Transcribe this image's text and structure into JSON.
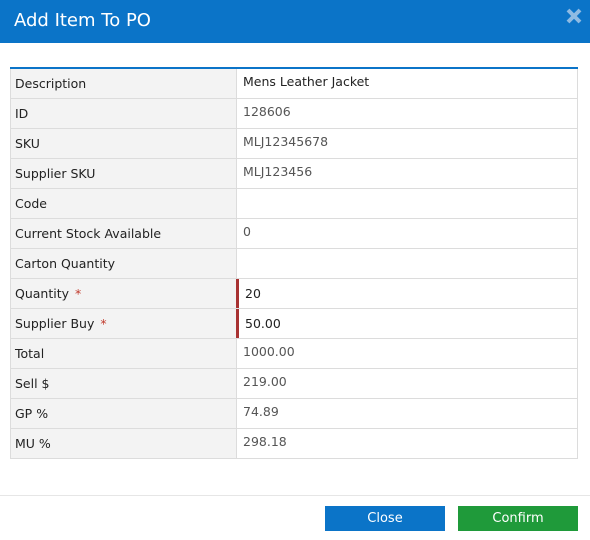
{
  "dialog": {
    "title": "Add Item To PO",
    "close_icon": "close-x-icon",
    "accent_color": "#0b74c8",
    "required_color": "#c0392b"
  },
  "fields": [
    {
      "label": "Description",
      "value": "Mens Leather Jacket",
      "required": false,
      "editable": false
    },
    {
      "label": "ID",
      "value": "128606",
      "required": false,
      "editable": false
    },
    {
      "label": "SKU",
      "value": "MLJ12345678",
      "required": false,
      "editable": false
    },
    {
      "label": "Supplier SKU",
      "value": "MLJ123456",
      "required": false,
      "editable": false
    },
    {
      "label": "Code",
      "value": "",
      "required": false,
      "editable": false
    },
    {
      "label": "Current Stock Available",
      "value": "0",
      "required": false,
      "editable": false
    },
    {
      "label": "Carton Quantity",
      "value": "",
      "required": false,
      "editable": false
    },
    {
      "label": "Quantity",
      "value": "20",
      "required": true,
      "editable": true
    },
    {
      "label": "Supplier Buy",
      "value": "50.00",
      "required": true,
      "editable": true
    },
    {
      "label": "Total",
      "value": "1000.00",
      "required": false,
      "editable": false
    },
    {
      "label": "Sell $",
      "value": "219.00",
      "required": false,
      "editable": false
    },
    {
      "label": "GP %",
      "value": "74.89",
      "required": false,
      "editable": false
    },
    {
      "label": "MU %",
      "value": "298.18",
      "required": false,
      "editable": false
    }
  ],
  "required_marker": "*",
  "buttons": {
    "close_label": "Close",
    "confirm_label": "Confirm",
    "close_color": "#0b74c8",
    "confirm_color": "#1f9a3a"
  }
}
